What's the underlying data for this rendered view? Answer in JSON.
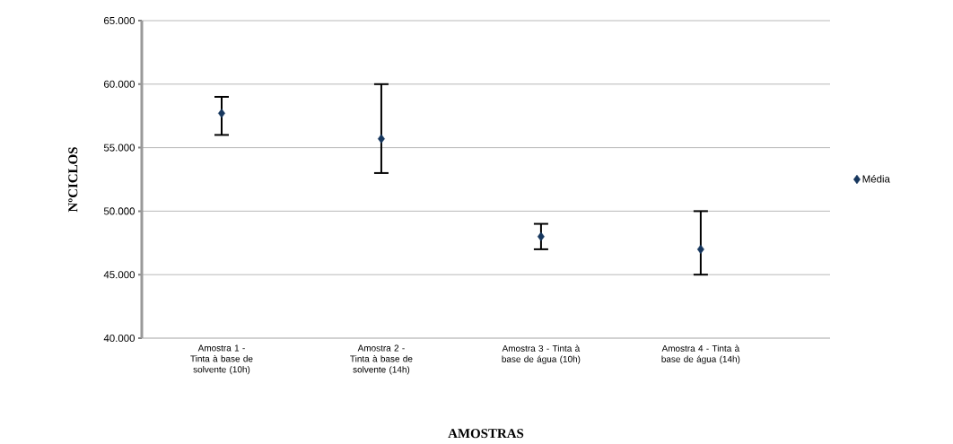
{
  "chart_data": {
    "type": "scatter",
    "xlabel": "AMOSTRAS",
    "ylabel": "NºCICLOS",
    "categories": [
      "Amostra 1 -Tinta à base de solvente (10h)",
      "Amostra 2 -Tinta à base de solvente (14h)",
      "Amostra 3 - Tinta à base de água (10h)",
      "Amostra 4 - Tinta à base de água (14h)"
    ],
    "series": [
      {
        "name": "Média",
        "color": "#17375e",
        "values": [
          57700,
          55700,
          48000,
          47000
        ],
        "errors": [
          [
            56000,
            59000
          ],
          [
            53000,
            60000
          ],
          [
            47000,
            49000
          ],
          [
            45000,
            50000
          ]
        ]
      }
    ],
    "ylim": [
      40000,
      65000
    ],
    "yticks": [
      {
        "value": 40000,
        "label": "40.000"
      },
      {
        "value": 45000,
        "label": "45.000"
      },
      {
        "value": 50000,
        "label": "50.000"
      },
      {
        "value": 55000,
        "label": "55.000"
      },
      {
        "value": 60000,
        "label": "60.000"
      },
      {
        "value": 65000,
        "label": "65.000"
      }
    ],
    "grid": "y",
    "legend": "right",
    "marker": "diamond"
  }
}
